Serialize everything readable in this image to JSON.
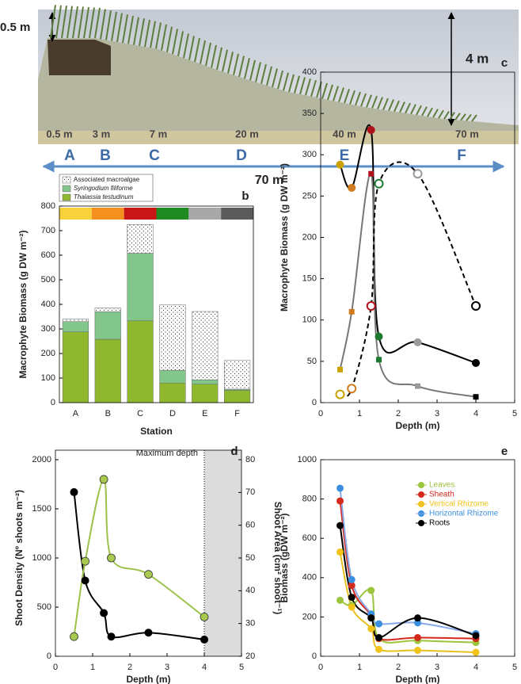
{
  "profile": {
    "heights": [
      "0.5 m",
      "4 m"
    ],
    "depths": [
      "0.5 m",
      "3 m",
      "7 m",
      "20 m",
      "40 m",
      "70 m"
    ],
    "stations": [
      "A",
      "B",
      "C",
      "D",
      "E",
      "F"
    ],
    "span": "70 m"
  },
  "chart_data": [
    {
      "type": "bar",
      "stacked": true,
      "panel": "b",
      "categories": [
        "A",
        "B",
        "C",
        "D",
        "E",
        "F"
      ],
      "xlabel": "Station",
      "ylabel": "Macrophyte Biomass (g DW m⁻²)",
      "ylim": [
        0,
        800
      ],
      "yticks": [
        0,
        100,
        200,
        300,
        400,
        500,
        600,
        700,
        800
      ],
      "station_colors": [
        "#f7d23a",
        "#f4901e",
        "#c81616",
        "#1f8a22",
        "#a8a8a8",
        "#5a5a5a"
      ],
      "legend": "top",
      "series": [
        {
          "name": "Thalassia testudinum",
          "style": "italic",
          "color": "#8fb82e",
          "values": [
            288,
            258,
            333,
            80,
            75,
            50
          ]
        },
        {
          "name": "Syringodium filiforme",
          "style": "italic",
          "color": "#82c68c",
          "values": [
            42,
            112,
            275,
            52,
            18,
            5
          ]
        },
        {
          "name": "Associated macroalgae",
          "style": "normal",
          "color": "#ffffff",
          "pattern": "dots",
          "values": [
            10,
            15,
            117,
            266,
            278,
            117
          ]
        }
      ]
    },
    {
      "type": "line",
      "panel": "c",
      "x": [
        0.5,
        0.8,
        1.3,
        1.5,
        2.5,
        4
      ],
      "xlim": [
        0,
        5
      ],
      "xticks": [
        0,
        1,
        2,
        3,
        4,
        5
      ],
      "ylim": [
        0,
        400
      ],
      "yticks": [
        0,
        50,
        100,
        150,
        200,
        250,
        300,
        350,
        400
      ],
      "xlabel": "Depth (m)",
      "ylabel": "Macrophyte Biomass (g DW m⁻²)",
      "series": [
        {
          "marker": "circle",
          "line_color": "#000000",
          "colors": [
            "#c9a200",
            "#cf7a1c",
            "#b0101a",
            "#1e7a2e",
            "#9a9a9a",
            "#000000"
          ],
          "values": [
            288,
            260,
            330,
            80,
            73,
            48
          ]
        },
        {
          "marker": "square",
          "line_color": "#777777",
          "colors": [
            "#c9a200",
            "#cf7a1c",
            "#b0101a",
            "#1e7a2e",
            "#9a9a9a",
            "#000000"
          ],
          "values": [
            40,
            110,
            277,
            52,
            20,
            7
          ]
        },
        {
          "marker": "open",
          "dash": true,
          "line_color": "#000000",
          "colors": [
            "#c9a200",
            "#cf7a1c",
            "#b0101a",
            "#1e7a2e",
            "#9a9a9a",
            "#000000"
          ],
          "values": [
            10,
            17,
            117,
            265,
            277,
            117
          ]
        }
      ]
    },
    {
      "type": "line",
      "panel": "d",
      "x": [
        0.5,
        0.8,
        1.3,
        1.5,
        2.5,
        4
      ],
      "xlim": [
        0,
        5
      ],
      "xticks": [
        0,
        1,
        2,
        3,
        4,
        5
      ],
      "ylim": [
        0,
        2000
      ],
      "yticks": [
        0,
        500,
        1000,
        1500,
        2000
      ],
      "y2lim": [
        20,
        80
      ],
      "y2ticks": [
        20,
        30,
        40,
        50,
        60,
        70,
        80
      ],
      "xlabel": "Depth (m)",
      "ylabel": "Shoot Density (Nº shoots m⁻²)",
      "y2label": "Shoot Area (cm² shoot⁻¹)",
      "annotation": "Maximum depth",
      "max_depth": 4,
      "series": [
        {
          "marker": "circle",
          "color": "#000000",
          "line_color": "#000000",
          "values": [
            1670,
            770,
            440,
            200,
            240,
            170
          ]
        },
        {
          "marker": "circle",
          "axis": "y2",
          "color": "#a6c94e",
          "line_color": "#9cc24a",
          "values": [
            26,
            49,
            74,
            50,
            45,
            32
          ]
        }
      ]
    },
    {
      "type": "line",
      "panel": "e",
      "x": [
        0.5,
        0.8,
        1.3,
        1.5,
        2.5,
        4
      ],
      "xlim": [
        0,
        5
      ],
      "xticks": [
        0,
        1,
        2,
        3,
        4,
        5
      ],
      "ylim": [
        0,
        1000
      ],
      "yticks": [
        0,
        200,
        400,
        600,
        800,
        1000
      ],
      "xlabel": "Depth (m)",
      "ylabel": "Biomass (gDW m⁻²)",
      "legend": "upper right",
      "series": [
        {
          "name": "Leaves",
          "marker": "circle",
          "color": "#9bc53d",
          "line_color": "#9bc53d",
          "values": [
            285,
            260,
            335,
            90,
            80,
            70
          ]
        },
        {
          "name": "Sheath",
          "marker": "circle",
          "color": "#d42a1e",
          "line_color": "#d42a1e",
          "values": [
            790,
            360,
            205,
            90,
            95,
            90
          ]
        },
        {
          "name": "Vertical Rhizome",
          "marker": "circle",
          "color": "#f2c31a",
          "line_color": "#e8c020",
          "values": [
            530,
            250,
            140,
            35,
            30,
            20
          ]
        },
        {
          "name": "Horizontal Rhizome",
          "marker": "circle",
          "color": "#3b8fe0",
          "line_color": "#8aa8e8",
          "values": [
            855,
            390,
            215,
            165,
            170,
            115
          ]
        },
        {
          "name": "Roots",
          "marker": "circle",
          "color": "#000000",
          "line_color": "#000000",
          "values": [
            665,
            300,
            195,
            95,
            195,
            105
          ]
        }
      ]
    }
  ]
}
